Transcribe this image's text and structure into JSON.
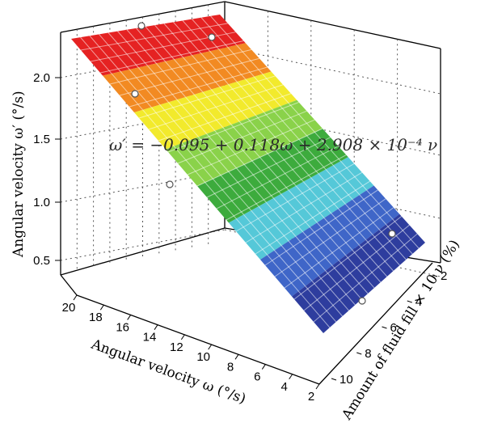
{
  "chart_data": {
    "type": "surface",
    "title": "",
    "equation": "ω′ = −0.095 + 0.118ω + 2.908 × 10⁻⁴ ν",
    "zlabel": "Angular velocity ω′ (°/s)",
    "xlabel": "Angular velocity ω (°/s)",
    "ylabel": "Amount of fluid fill × 10 ν (%)",
    "x_ticks": [
      "2",
      "4",
      "6",
      "8",
      "10",
      "12",
      "14",
      "16",
      "18",
      "20"
    ],
    "y_ticks": [
      "2",
      "4",
      "6",
      "8",
      "10"
    ],
    "z_ticks": [
      "0.5",
      "1.0",
      "1.5",
      "2.0"
    ],
    "xlim": [
      2,
      20
    ],
    "ylim": [
      2,
      10
    ],
    "zlim": [
      0.3,
      2.3
    ],
    "colors": [
      "#2e3d9e",
      "#3f66c8",
      "#55c8d8",
      "#3dab3d",
      "#8ad24a",
      "#f2ea2c",
      "#f28a22",
      "#e52222"
    ],
    "points": [
      {
        "x": 18,
        "y": 1,
        "z": 2.2
      },
      {
        "x": 14,
        "y": 2,
        "z": 2.0
      },
      {
        "x": 18,
        "y": 3,
        "z": 1.9
      },
      {
        "x": 6,
        "y": 2,
        "z": 0.75
      },
      {
        "x": 14,
        "y": 8,
        "z": 1.35
      },
      {
        "x": 2,
        "y": 8,
        "z": 0.5
      }
    ]
  }
}
